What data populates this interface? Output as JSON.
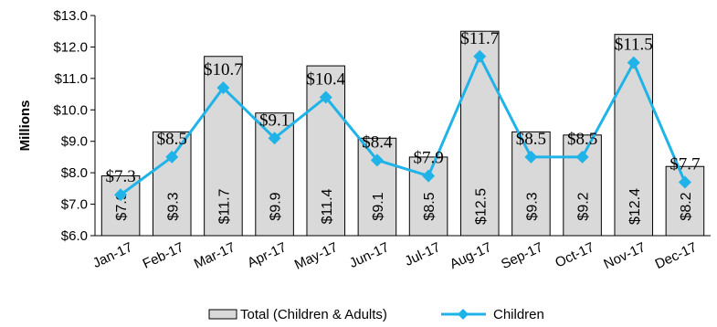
{
  "chart_data": {
    "type": "bar",
    "categories": [
      "Jan-17",
      "Feb-17",
      "Mar-17",
      "Apr-17",
      "May-17",
      "Jun-17",
      "Jul-17",
      "Aug-17",
      "Sep-17",
      "Oct-17",
      "Nov-17",
      "Dec-17"
    ],
    "series": [
      {
        "name": "Total (Children & Adults)",
        "type": "bar",
        "values": [
          7.9,
          9.3,
          11.7,
          9.9,
          11.4,
          9.1,
          8.5,
          12.5,
          9.3,
          9.2,
          12.4,
          8.2
        ],
        "labels": [
          "$7.9",
          "$9.3",
          "$11.7",
          "$9.9",
          "$11.4",
          "$9.1",
          "$8.5",
          "$12.5",
          "$9.3",
          "$9.2",
          "$12.4",
          "$8.2"
        ],
        "color": "#d9d9d9"
      },
      {
        "name": "Children",
        "type": "line",
        "values": [
          7.3,
          8.5,
          10.7,
          9.1,
          10.4,
          8.4,
          7.9,
          11.7,
          8.5,
          8.5,
          11.5,
          7.7
        ],
        "labels": [
          "$7.3",
          "$8.5",
          "$10.7",
          "$9.1",
          "$10.4",
          "$8.4",
          "$7.9",
          "$11.7",
          "$8.5",
          "$8.5",
          "$11.5",
          "$7.7"
        ],
        "color": "#1fb3e8"
      }
    ],
    "ylabel": "Millions",
    "ylim": [
      6.0,
      13.0
    ],
    "yticks": [
      "$6.0",
      "$7.0",
      "$8.0",
      "$9.0",
      "$10.0",
      "$11.0",
      "$12.0",
      "$13.0"
    ],
    "grid": false,
    "legend_position": "bottom"
  }
}
